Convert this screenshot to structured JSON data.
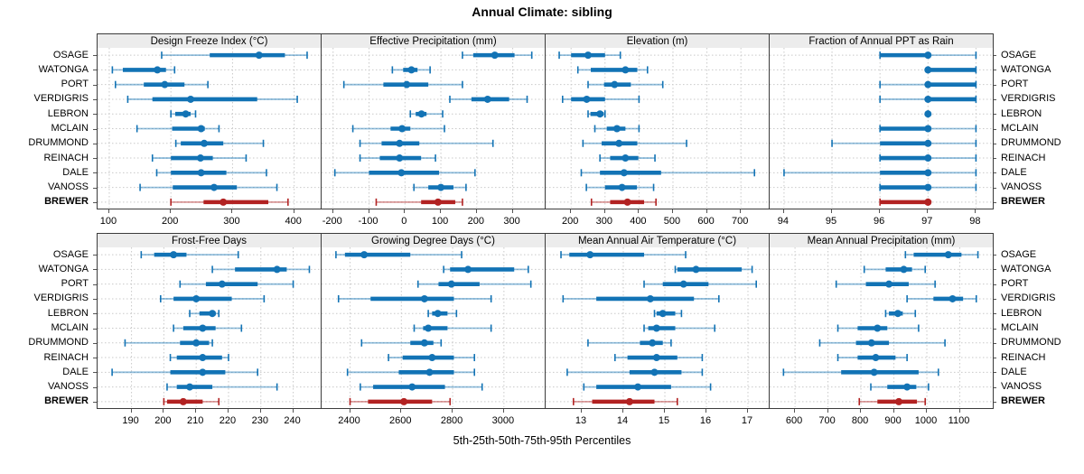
{
  "title": "Annual Climate: sibling",
  "caption": "5th-25th-50th-75th-95th Percentiles",
  "stations": [
    "OSAGE",
    "WATONGA",
    "PORT",
    "VERDIGRIS",
    "LEBRON",
    "MCLAIN",
    "DRUMMOND",
    "REINACH",
    "DALE",
    "VANOSS",
    "BREWER"
  ],
  "highlight_station": "BREWER",
  "colors": {
    "series_blue": "#1273b5",
    "highlight_red": "#b22222",
    "grid": "#c9c9c9",
    "border": "#3c3c3c",
    "header_bg": "#ececec",
    "tick": "#555555"
  },
  "chart_data": {
    "type": "percentile_dotplot",
    "percentiles": [
      5,
      25,
      50,
      75,
      95
    ],
    "legend_note": "thin line = 5th-95th, thick band = 25th-75th, dot = median; BREWER highlighted in red",
    "panel_layout": [
      [
        "Design Freeze Index (°C)",
        "Effective Precipitation (mm)",
        "Elevation (m)",
        "Fraction of Annual PPT as Rain"
      ],
      [
        "Frost-Free Days",
        "Growing Degree Days (°C)",
        "Mean Annual Air Temperature (°C)",
        "Mean Annual Precipitation (mm)"
      ]
    ],
    "panels": [
      {
        "title": "Design Freeze Index (°C)",
        "ticks": [
          100,
          200,
          300,
          400
        ],
        "domain": [
          81,
          443
        ],
        "series": [
          [
            185,
            263,
            343,
            385,
            421
          ],
          [
            105,
            122,
            178,
            192,
            206
          ],
          [
            110,
            156,
            190,
            222,
            260
          ],
          [
            130,
            170,
            232,
            340,
            405
          ],
          [
            200,
            207,
            224,
            232,
            240
          ],
          [
            145,
            202,
            249,
            255,
            278
          ],
          [
            208,
            216,
            254,
            285,
            350
          ],
          [
            170,
            200,
            248,
            268,
            322
          ],
          [
            177,
            200,
            249,
            290,
            355
          ],
          [
            150,
            203,
            270,
            307,
            372
          ],
          [
            200,
            253,
            285,
            358,
            390
          ]
        ]
      },
      {
        "title": "Effective Precipitation (mm)",
        "ticks": [
          -200,
          -100,
          0,
          100,
          200,
          300
        ],
        "domain": [
          -232,
          389
        ],
        "series": [
          [
            160,
            190,
            250,
            305,
            353
          ],
          [
            -35,
            -5,
            18,
            35,
            70
          ],
          [
            -170,
            -60,
            5,
            65,
            160
          ],
          [
            125,
            185,
            230,
            290,
            340
          ],
          [
            15,
            30,
            46,
            60,
            105
          ],
          [
            -145,
            -40,
            -8,
            15,
            110
          ],
          [
            -125,
            -65,
            -15,
            40,
            245
          ],
          [
            -125,
            -70,
            -15,
            45,
            85
          ],
          [
            -195,
            -100,
            -10,
            95,
            195
          ],
          [
            25,
            65,
            100,
            135,
            170
          ],
          [
            -80,
            45,
            92,
            140,
            160
          ]
        ]
      },
      {
        "title": "Elevation (m)",
        "ticks": [
          200,
          300,
          400,
          500,
          600,
          700
        ],
        "domain": [
          125,
          782
        ],
        "series": [
          [
            165,
            200,
            250,
            300,
            345
          ],
          [
            220,
            258,
            360,
            395,
            425
          ],
          [
            250,
            297,
            328,
            376,
            470
          ],
          [
            175,
            200,
            246,
            300,
            400
          ],
          [
            250,
            257,
            285,
            296,
            300
          ],
          [
            270,
            305,
            335,
            360,
            400
          ],
          [
            235,
            290,
            341,
            395,
            540
          ],
          [
            285,
            315,
            360,
            398,
            447
          ],
          [
            230,
            285,
            356,
            465,
            740
          ],
          [
            245,
            300,
            350,
            394,
            443
          ],
          [
            260,
            315,
            366,
            415,
            450
          ]
        ]
      },
      {
        "title": "Fraction of Annual PPT as Rain",
        "ticks": [
          94,
          95,
          96,
          97,
          98
        ],
        "domain": [
          93.7,
          98.35
        ],
        "series": [
          [
            96,
            96,
            97,
            97,
            98
          ],
          [
            97,
            97,
            97,
            98,
            98
          ],
          [
            96,
            97,
            97,
            98,
            98
          ],
          [
            96,
            97,
            97,
            98,
            98
          ],
          [
            97,
            97,
            97,
            97,
            97
          ],
          [
            96,
            96,
            97,
            97,
            98
          ],
          [
            95,
            96,
            97,
            97,
            98
          ],
          [
            96,
            96,
            97,
            97,
            98
          ],
          [
            94,
            96,
            97,
            97,
            98
          ],
          [
            96,
            96,
            97,
            97,
            98
          ],
          [
            96,
            96,
            97,
            97,
            97
          ]
        ]
      },
      {
        "title": "Frost-Free Days",
        "ticks": [
          190,
          200,
          210,
          220,
          230,
          240
        ],
        "domain": [
          179.5,
          248.5
        ],
        "series": [
          [
            193,
            197,
            203,
            207,
            223
          ],
          [
            215,
            222,
            235,
            238,
            245
          ],
          [
            205,
            213,
            218,
            229,
            240
          ],
          [
            199,
            203,
            210,
            221,
            231
          ],
          [
            208,
            211,
            215,
            216,
            217
          ],
          [
            203,
            206,
            212,
            216,
            224
          ],
          [
            188,
            205,
            210,
            214,
            215
          ],
          [
            202,
            204,
            212,
            218,
            220
          ],
          [
            184,
            202,
            212,
            219,
            229
          ],
          [
            201,
            204,
            208,
            215,
            235
          ],
          [
            200,
            201,
            206,
            212,
            217
          ]
        ]
      },
      {
        "title": "Growing Degree Days (°C)",
        "ticks": [
          2400,
          2600,
          2800,
          3000
        ],
        "domain": [
          2289,
          3159
        ],
        "series": [
          [
            2345,
            2380,
            2455,
            2635,
            2835
          ],
          [
            2765,
            2790,
            2860,
            3040,
            3095
          ],
          [
            2665,
            2745,
            2795,
            2905,
            3105
          ],
          [
            2355,
            2480,
            2690,
            2805,
            2950
          ],
          [
            2705,
            2720,
            2742,
            2780,
            2815
          ],
          [
            2650,
            2685,
            2705,
            2780,
            2950
          ],
          [
            2445,
            2635,
            2690,
            2725,
            2755
          ],
          [
            2550,
            2605,
            2720,
            2805,
            2885
          ],
          [
            2390,
            2590,
            2710,
            2805,
            2885
          ],
          [
            2440,
            2490,
            2642,
            2770,
            2915
          ],
          [
            2400,
            2470,
            2610,
            2720,
            2790
          ]
        ]
      },
      {
        "title": "Mean Annual Air Temperature (°C)",
        "ticks": [
          13,
          14,
          15,
          16,
          17
        ],
        "domain": [
          12.13,
          17.5
        ],
        "series": [
          [
            12.5,
            12.7,
            13.2,
            14.5,
            15.5
          ],
          [
            15.25,
            15.3,
            15.75,
            16.85,
            17.1
          ],
          [
            14.5,
            14.95,
            15.45,
            16.05,
            17.2
          ],
          [
            12.55,
            13.35,
            14.65,
            15.7,
            16.3
          ],
          [
            14.75,
            14.8,
            14.95,
            15.25,
            15.4
          ],
          [
            14.5,
            14.6,
            14.8,
            15.25,
            16.2
          ],
          [
            13.15,
            14.4,
            14.7,
            14.95,
            15.15
          ],
          [
            13.8,
            14.1,
            14.8,
            15.3,
            15.9
          ],
          [
            12.65,
            14.15,
            14.75,
            15.4,
            15.9
          ],
          [
            13.05,
            13.35,
            14.35,
            15.15,
            16.1
          ],
          [
            12.8,
            13.25,
            14.15,
            14.75,
            15.3
          ]
        ]
      },
      {
        "title": "Mean Annual Precipitation (mm)",
        "ticks": [
          600,
          700,
          800,
          900,
          1000,
          1100
        ],
        "domain": [
          523,
          1200
        ],
        "series": [
          [
            935,
            960,
            1065,
            1105,
            1155
          ],
          [
            810,
            875,
            930,
            955,
            995
          ],
          [
            725,
            815,
            885,
            945,
            1025
          ],
          [
            940,
            1020,
            1078,
            1110,
            1150
          ],
          [
            875,
            885,
            912,
            927,
            965
          ],
          [
            730,
            790,
            850,
            880,
            975
          ],
          [
            675,
            785,
            832,
            885,
            1055
          ],
          [
            730,
            790,
            845,
            905,
            940
          ],
          [
            565,
            740,
            840,
            975,
            1035
          ],
          [
            830,
            880,
            940,
            968,
            1005
          ],
          [
            795,
            850,
            915,
            970,
            995
          ]
        ]
      }
    ]
  }
}
